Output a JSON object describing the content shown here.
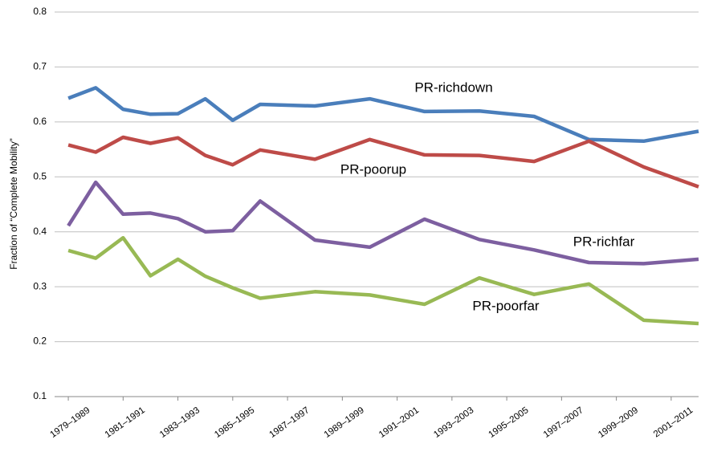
{
  "chart_data": {
    "type": "line",
    "y_label": "Fraction of “Complete Mobility”",
    "x": [
      1979,
      1980,
      1981,
      1982,
      1983,
      1984,
      1985,
      1986,
      1988,
      1990,
      1992,
      1994,
      1996,
      1998,
      2000,
      2002
    ],
    "xlim": [
      1978.5,
      2002
    ],
    "xticks": [
      {
        "value": 1979,
        "label": "1979–1989"
      },
      {
        "value": 1981,
        "label": "1981–1991"
      },
      {
        "value": 1983,
        "label": "1983–1993"
      },
      {
        "value": 1985,
        "label": "1985–1995"
      },
      {
        "value": 1987,
        "label": "1987–1997"
      },
      {
        "value": 1989,
        "label": "1989–1999"
      },
      {
        "value": 1991,
        "label": "1991–2001"
      },
      {
        "value": 1993,
        "label": "1993–2003"
      },
      {
        "value": 1995,
        "label": "1995–2005"
      },
      {
        "value": 1997,
        "label": "1997–2007"
      },
      {
        "value": 1999,
        "label": "1999–2009"
      },
      {
        "value": 2001,
        "label": "2001–2011"
      }
    ],
    "ylim": [
      0.1,
      0.8
    ],
    "yticks": [
      0.1,
      0.2,
      0.3,
      0.4,
      0.5,
      0.6,
      0.7,
      0.8
    ],
    "grid": true,
    "series": [
      {
        "name": "PR-richdown",
        "color": "#4a7ebb",
        "values": [
          0.643,
          0.662,
          0.623,
          0.614,
          0.615,
          0.642,
          0.603,
          0.632,
          0.629,
          0.642,
          0.619,
          0.62,
          0.61,
          0.568,
          0.565,
          0.583
        ]
      },
      {
        "name": "PR-poorup",
        "color": "#be4b48",
        "values": [
          0.558,
          0.545,
          0.572,
          0.561,
          0.571,
          0.539,
          0.522,
          0.549,
          0.532,
          0.568,
          0.54,
          0.539,
          0.528,
          0.565,
          0.518,
          0.482
        ]
      },
      {
        "name": "PR-richfar",
        "color": "#7d5fa0",
        "values": [
          0.411,
          0.49,
          0.432,
          0.434,
          0.424,
          0.4,
          0.402,
          0.456,
          0.385,
          0.372,
          0.423,
          0.386,
          0.367,
          0.344,
          0.342,
          0.35
        ]
      },
      {
        "name": "PR-poorfar",
        "color": "#98b954",
        "values": [
          0.366,
          0.352,
          0.389,
          0.32,
          0.35,
          0.319,
          0.298,
          0.279,
          0.291,
          0.285,
          0.268,
          0.316,
          0.286,
          0.305,
          0.239,
          0.233
        ]
      }
    ]
  }
}
